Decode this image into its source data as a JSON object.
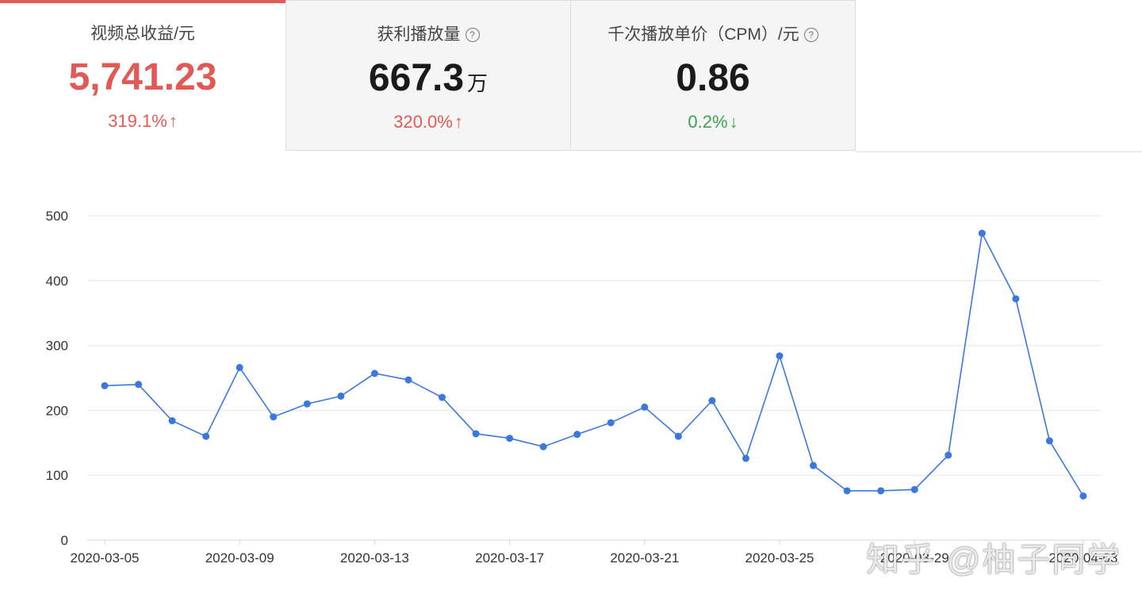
{
  "metrics": [
    {
      "label": "视频总收益/元",
      "value": "5,741.23",
      "unit": "",
      "change": "319.1%",
      "direction": "up",
      "help": false
    },
    {
      "label": "获利播放量",
      "value": "667.3",
      "unit": "万",
      "change": "320.0%",
      "direction": "up",
      "help": true
    },
    {
      "label": "千次播放单价（CPM）/元",
      "value": "0.86",
      "unit": "",
      "change": "0.2%",
      "direction": "down",
      "help": true
    }
  ],
  "icons": {
    "up": "arrow-up-icon",
    "down": "arrow-down-icon",
    "help": "question-circle-icon"
  },
  "colors": {
    "accent": "#e15a55",
    "up": "#e15a55",
    "down": "#3aa44c",
    "line": "#3a78e0"
  },
  "watermark": "知乎 @柚子同学",
  "chart_data": {
    "type": "line",
    "x": [
      "2020-03-05",
      "2020-03-06",
      "2020-03-07",
      "2020-03-08",
      "2020-03-09",
      "2020-03-10",
      "2020-03-11",
      "2020-03-12",
      "2020-03-13",
      "2020-03-14",
      "2020-03-15",
      "2020-03-16",
      "2020-03-17",
      "2020-03-18",
      "2020-03-19",
      "2020-03-20",
      "2020-03-21",
      "2020-03-22",
      "2020-03-23",
      "2020-03-24",
      "2020-03-25",
      "2020-03-26",
      "2020-03-27",
      "2020-03-28",
      "2020-03-29",
      "2020-03-30",
      "2020-03-31",
      "2020-04-01",
      "2020-04-02",
      "2020-04-03"
    ],
    "series": [
      {
        "values": [
          238,
          240,
          184,
          160,
          266,
          190,
          210,
          222,
          257,
          247,
          220,
          164,
          157,
          144,
          163,
          181,
          205,
          160,
          215,
          126,
          284,
          115,
          76,
          76,
          78,
          131,
          473,
          372,
          153,
          68
        ]
      }
    ],
    "xtick_labels": [
      "2020-03-05",
      "2020-03-09",
      "2020-03-13",
      "2020-03-17",
      "2020-03-21",
      "2020-03-25",
      "2020-03-29",
      "2020-04-03"
    ],
    "yticks": [
      0,
      100,
      200,
      300,
      400,
      500
    ],
    "ylim": [
      0,
      500
    ],
    "grid": true,
    "title": "",
    "xlabel": "",
    "ylabel": ""
  }
}
